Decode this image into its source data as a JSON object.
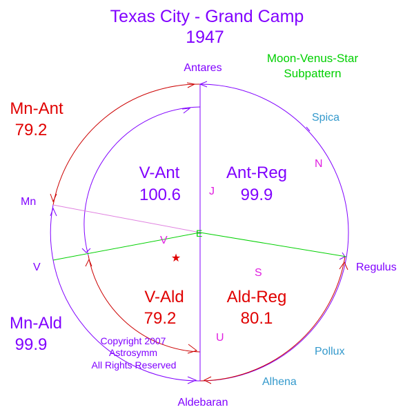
{
  "title": {
    "line1": "Texas City - Grand Camp",
    "line2": "1947"
  },
  "subtitle": {
    "line1": "Moon-Venus-Star",
    "line2": "Subpattern"
  },
  "stars": {
    "antares": "Antares",
    "aldebaran": "Aldebaran",
    "regulus": "Regulus",
    "spica": "Spica",
    "pollux": "Pollux",
    "alhena": "Alhena"
  },
  "planets": {
    "moon": "Mn",
    "venus_outer": "V",
    "venus_inner": "V",
    "earth": "E",
    "jupiter": "J",
    "neptune": "N",
    "saturn": "S",
    "uranus": "U"
  },
  "arcs": {
    "mn_ant": {
      "label": "Mn-Ant",
      "value": "79.2"
    },
    "mn_ald": {
      "label": "Mn-Ald",
      "value": "99.9"
    },
    "v_ant": {
      "label": "V-Ant",
      "value": "100.6"
    },
    "v_ald": {
      "label": "V-Ald",
      "value": "79.2"
    },
    "ant_reg": {
      "label": "Ant-Reg",
      "value": "99.9"
    },
    "ald_reg": {
      "label": "Ald-Reg",
      "value": "80.1"
    }
  },
  "copyright": {
    "line1": "Copyright 2007",
    "line2": "Astrosymm",
    "line3": "All Rights Reserved"
  },
  "colors": {
    "purple": "#8000ff",
    "red": "#e00000",
    "green": "#00d000",
    "teal": "#3399cc",
    "magenta": "#e020e0",
    "pink": "#e080e0",
    "dark_red": "#b00000"
  }
}
